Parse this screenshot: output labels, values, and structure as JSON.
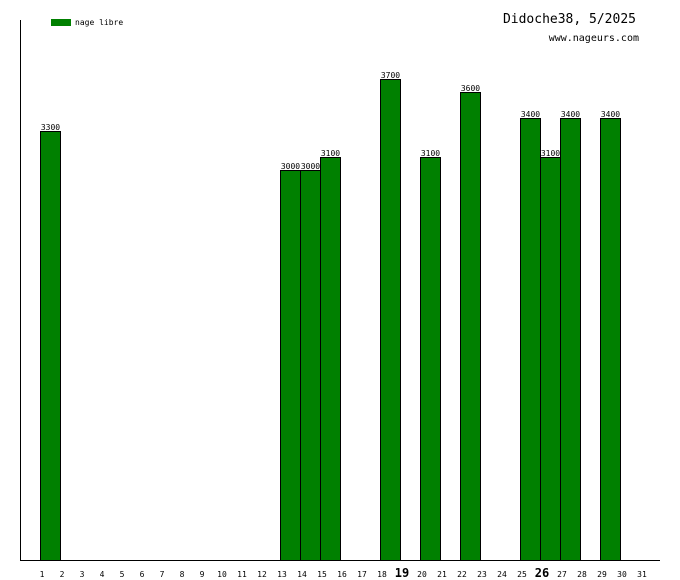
{
  "header": {
    "title": "Didoche38, 5/2025",
    "site": "www.nageurs.com"
  },
  "colors": {
    "bar": "#008000",
    "bar_stroke": "#000000",
    "axis": "#000000"
  },
  "chart_data": {
    "type": "bar",
    "title": "Didoche38, 5/2025",
    "xlabel": "",
    "ylabel": "",
    "ylim": [
      0,
      4000
    ],
    "grid": false,
    "legend_position": "top-left",
    "categories": [
      "1",
      "2",
      "3",
      "4",
      "5",
      "6",
      "7",
      "8",
      "9",
      "10",
      "11",
      "12",
      "13",
      "14",
      "15",
      "16",
      "17",
      "18",
      "19",
      "20",
      "21",
      "22",
      "23",
      "24",
      "25",
      "26",
      "27",
      "28",
      "29",
      "30",
      "31"
    ],
    "highlighted_categories": [
      "19",
      "26"
    ],
    "series": [
      {
        "name": "nage libre",
        "values": [
          null,
          3300,
          null,
          null,
          null,
          null,
          null,
          null,
          null,
          null,
          null,
          null,
          null,
          3000,
          3000,
          3100,
          null,
          null,
          3700,
          null,
          3100,
          null,
          3600,
          null,
          null,
          3400,
          3100,
          3400,
          null,
          3400,
          null
        ]
      }
    ]
  }
}
